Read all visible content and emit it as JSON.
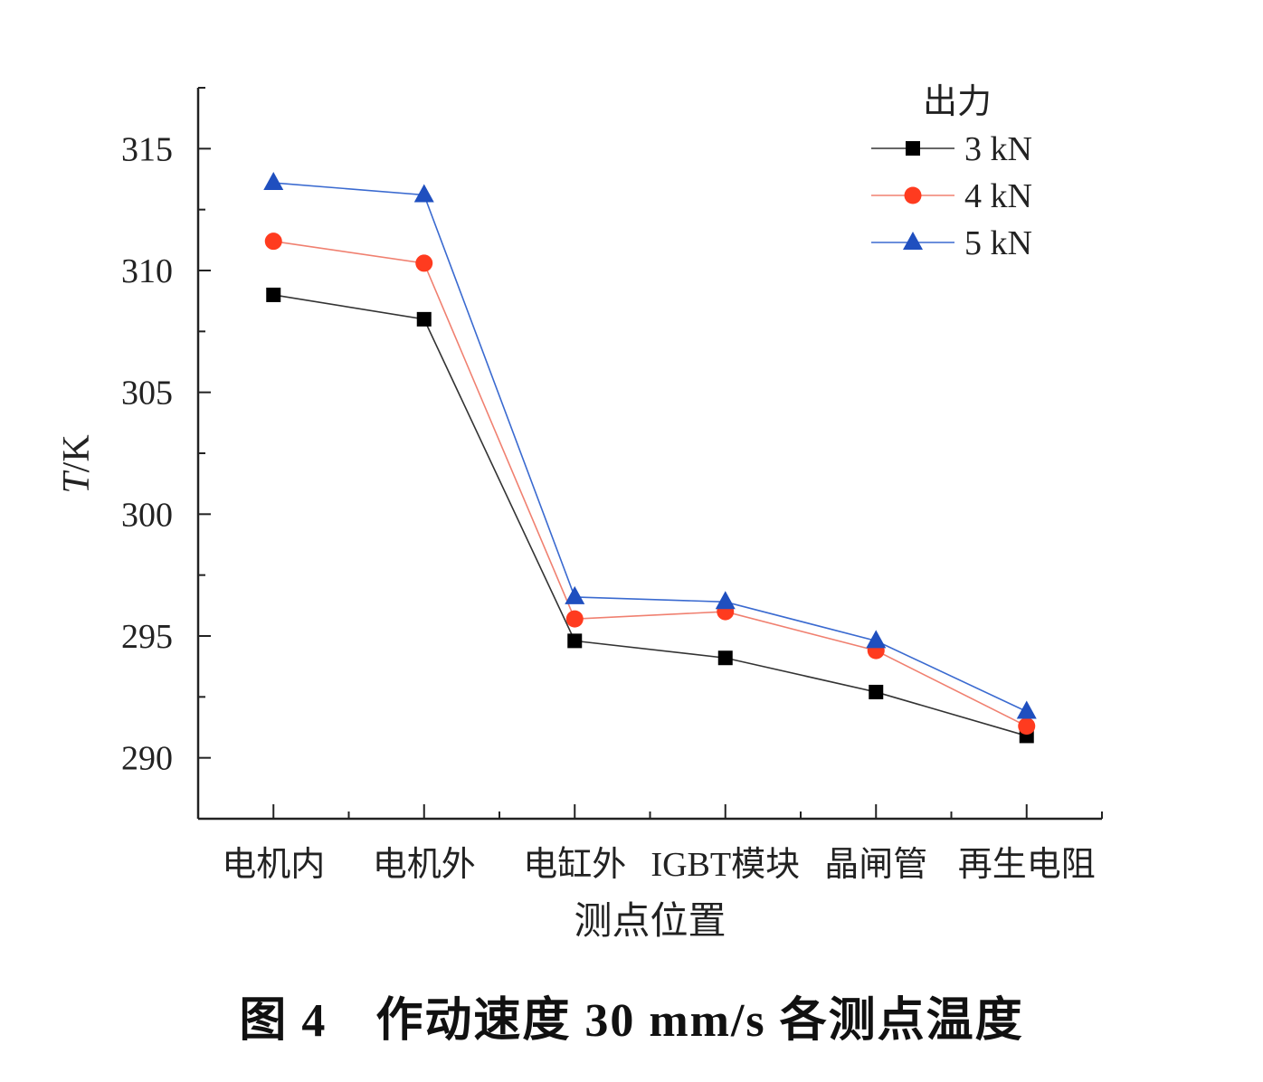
{
  "chart_data": {
    "type": "line",
    "title": "",
    "xlabel": "测点位置",
    "ylabel_italic": "T",
    "ylabel_unit": "/K",
    "categories": [
      "电机内",
      "电机外",
      "电缸外",
      "IGBT模块",
      "晶闸管",
      "再生电阻"
    ],
    "ylim": [
      287.5,
      317.5
    ],
    "yticks": [
      290,
      295,
      300,
      305,
      310,
      315
    ],
    "grid": false,
    "legend": {
      "title": "出力",
      "position": "top-right"
    },
    "series": [
      {
        "name": "3 kN",
        "marker": "square",
        "color": "#000000",
        "line_color": "#333333",
        "values": [
          309.0,
          308.0,
          294.8,
          294.1,
          292.7,
          290.9
        ]
      },
      {
        "name": "4 kN",
        "marker": "circle",
        "color": "#ff3b1f",
        "line_color": "#f08070",
        "values": [
          311.2,
          310.3,
          295.7,
          296.0,
          294.4,
          291.3
        ]
      },
      {
        "name": "5 kN",
        "marker": "triangle",
        "color": "#1f4fbf",
        "line_color": "#3a6ad0",
        "values": [
          313.6,
          313.1,
          296.6,
          296.4,
          294.8,
          291.9
        ]
      }
    ]
  },
  "caption": "图 4　作动速度 30 mm/s 各测点温度"
}
